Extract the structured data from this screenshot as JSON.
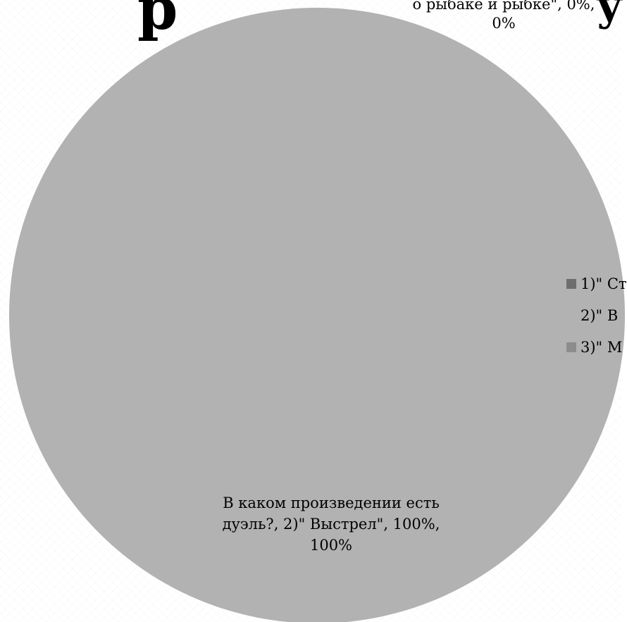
{
  "chart_data": {
    "type": "pie",
    "title_fragment": "р",
    "title_fragment_right": "у",
    "slices": [
      {
        "legend": "1)\" Ст",
        "value": 0,
        "color": "#6e6e6e"
      },
      {
        "legend": "2)\" В",
        "value": 100,
        "color": "#b2b2b2"
      },
      {
        "legend": "3)\" М",
        "value": 0,
        "color": "#8c8c8c"
      }
    ],
    "data_labels": {
      "top_overlap_line": "о рыбаке и рыбке\", 0%,",
      "top_value": "0%",
      "main": "В каком произведении есть дуэль?, 2)\" Выстрел\", 100%, 100%"
    },
    "legend_position": "right"
  }
}
